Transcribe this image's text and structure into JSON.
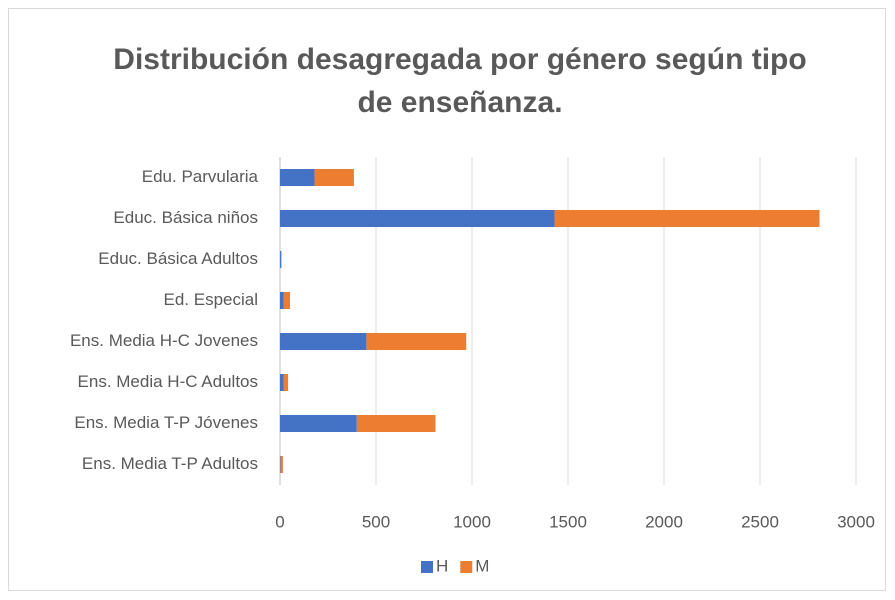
{
  "chart_data": {
    "type": "stacked_barh",
    "title": "Distribución desagregada por género según tipo de enseñanza.",
    "categories": [
      "Edu. Parvularia",
      "Educ. Básica niños",
      "Educ. Básica Adultos",
      "Ed. Especial",
      "Ens. Media H-C Jovenes",
      "Ens. Media H-C Adultos",
      "Ens. Media T-P Jóvenes",
      "Ens. Media T-P Adultos"
    ],
    "series": [
      {
        "name": "H",
        "color": "#4472c4",
        "values": [
          180,
          1430,
          5,
          20,
          450,
          20,
          400,
          3
        ]
      },
      {
        "name": "M",
        "color": "#ed7d31",
        "values": [
          205,
          1380,
          3,
          32,
          520,
          22,
          410,
          12
        ]
      }
    ],
    "xlim": [
      0,
      3000
    ],
    "xticks": [
      0,
      500,
      1000,
      1500,
      2000,
      2500,
      3000
    ],
    "grid": true,
    "legend": "bottom"
  }
}
